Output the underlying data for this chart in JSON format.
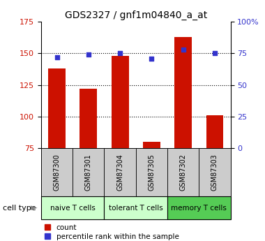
{
  "title": "GDS2327 / gnf1m04840_a_at",
  "samples": [
    "GSM87300",
    "GSM87301",
    "GSM87304",
    "GSM87305",
    "GSM87302",
    "GSM87303"
  ],
  "counts": [
    138,
    122,
    148,
    80,
    163,
    101
  ],
  "percentiles": [
    72,
    74,
    75,
    71,
    78,
    75
  ],
  "ylim_left": [
    75,
    175
  ],
  "ylim_right": [
    0,
    100
  ],
  "yticks_left": [
    75,
    100,
    125,
    150,
    175
  ],
  "yticks_right": [
    0,
    25,
    50,
    75,
    100
  ],
  "ytick_right_labels": [
    "0",
    "25",
    "50",
    "75",
    "100%"
  ],
  "group_positions": [
    [
      0,
      1,
      "#ccffcc",
      "naive T cells"
    ],
    [
      2,
      3,
      "#ccffcc",
      "tolerant T cells"
    ],
    [
      4,
      5,
      "#55cc55",
      "memory T cells"
    ]
  ],
  "bar_color": "#cc1100",
  "dot_color": "#3333cc",
  "bar_width": 0.55,
  "legend_count_label": "count",
  "legend_pct_label": "percentile rank within the sample",
  "bg_color": "#ffffff",
  "sample_box_color": "#cccccc",
  "gridlines_at": [
    100,
    125,
    150
  ]
}
